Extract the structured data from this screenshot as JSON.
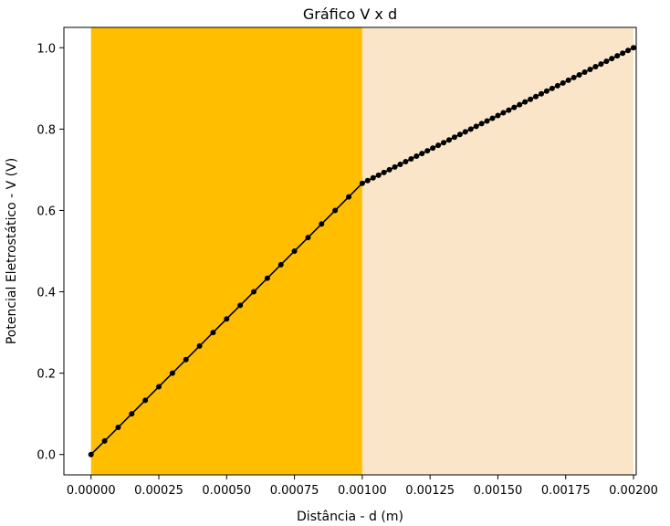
{
  "chart_data": {
    "type": "line",
    "title": "Gráfico V x d",
    "xlabel": "Distância - d (m)",
    "ylabel": "Potencial Eletrostático - V (V)",
    "xlim": [
      -0.0001,
      0.00201
    ],
    "ylim": [
      -0.05,
      1.05
    ],
    "grid": false,
    "legend": "none",
    "x_ticks": [
      0,
      0.00025,
      0.0005,
      0.00075,
      0.001,
      0.00125,
      0.0015,
      0.00175,
      0.002
    ],
    "x_tick_labels": [
      "0.00000",
      "0.00025",
      "0.00050",
      "0.00075",
      "0.00100",
      "0.00125",
      "0.00150",
      "0.00175",
      "0.00200"
    ],
    "y_ticks": [
      0,
      0.2,
      0.4,
      0.6,
      0.8,
      1.0
    ],
    "y_tick_labels": [
      "0.0",
      "0.2",
      "0.4",
      "0.6",
      "0.8",
      "1.0"
    ],
    "regions": [
      {
        "x_start": 0,
        "x_end": 0.001,
        "color": "#FFBF00"
      },
      {
        "x_start": 0.001,
        "x_end": 0.002,
        "color": "#FAE5C8"
      }
    ],
    "series": [
      {
        "color": "#000000",
        "marker": "circle",
        "segments": [
          {
            "x_start": 0,
            "x_end": 0.001,
            "y_start": 0,
            "y_end": 0.6667,
            "points": 21
          },
          {
            "x_start": 0.001,
            "x_end": 0.002,
            "y_start": 0.6667,
            "y_end": 1.0,
            "points": 51
          }
        ]
      }
    ]
  }
}
